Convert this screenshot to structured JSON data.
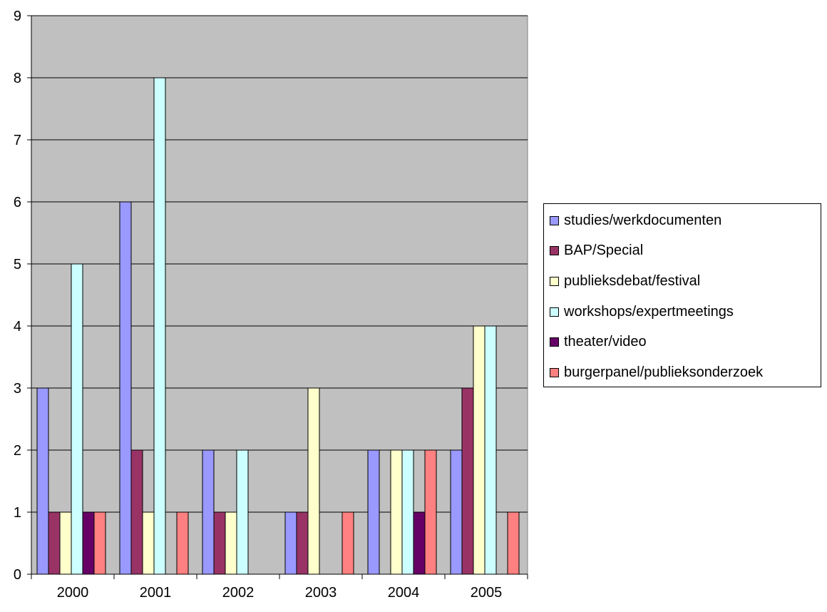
{
  "chart_data": {
    "type": "bar",
    "title": "",
    "xlabel": "",
    "ylabel": "",
    "categories": [
      "2000",
      "2001",
      "2002",
      "2003",
      "2004",
      "2005"
    ],
    "ylim": [
      0,
      9
    ],
    "yticks": [
      "0",
      "1",
      "2",
      "3",
      "4",
      "5",
      "6",
      "7",
      "8",
      "9"
    ],
    "grid": true,
    "plot_background": "#C0C0C0",
    "legend_position": "right",
    "series": [
      {
        "name": "studies/werkdocumenten",
        "color": "#9999FF",
        "values": [
          3,
          6,
          2,
          1,
          2,
          2
        ]
      },
      {
        "name": "BAP/Special",
        "color": "#993366",
        "values": [
          1,
          2,
          1,
          1,
          0,
          3
        ]
      },
      {
        "name": "publieksdebat/festival",
        "color": "#FFFFCC",
        "values": [
          1,
          1,
          1,
          3,
          2,
          4
        ]
      },
      {
        "name": "workshops/expertmeetings",
        "color": "#CCFFFF",
        "values": [
          5,
          8,
          2,
          0,
          2,
          4
        ]
      },
      {
        "name": "theater/video",
        "color": "#660066",
        "values": [
          1,
          0,
          0,
          0,
          1,
          0
        ]
      },
      {
        "name": "burgerpanel/publieksonderzoek",
        "color": "#FF8080",
        "values": [
          1,
          1,
          0,
          1,
          2,
          1
        ]
      }
    ]
  }
}
